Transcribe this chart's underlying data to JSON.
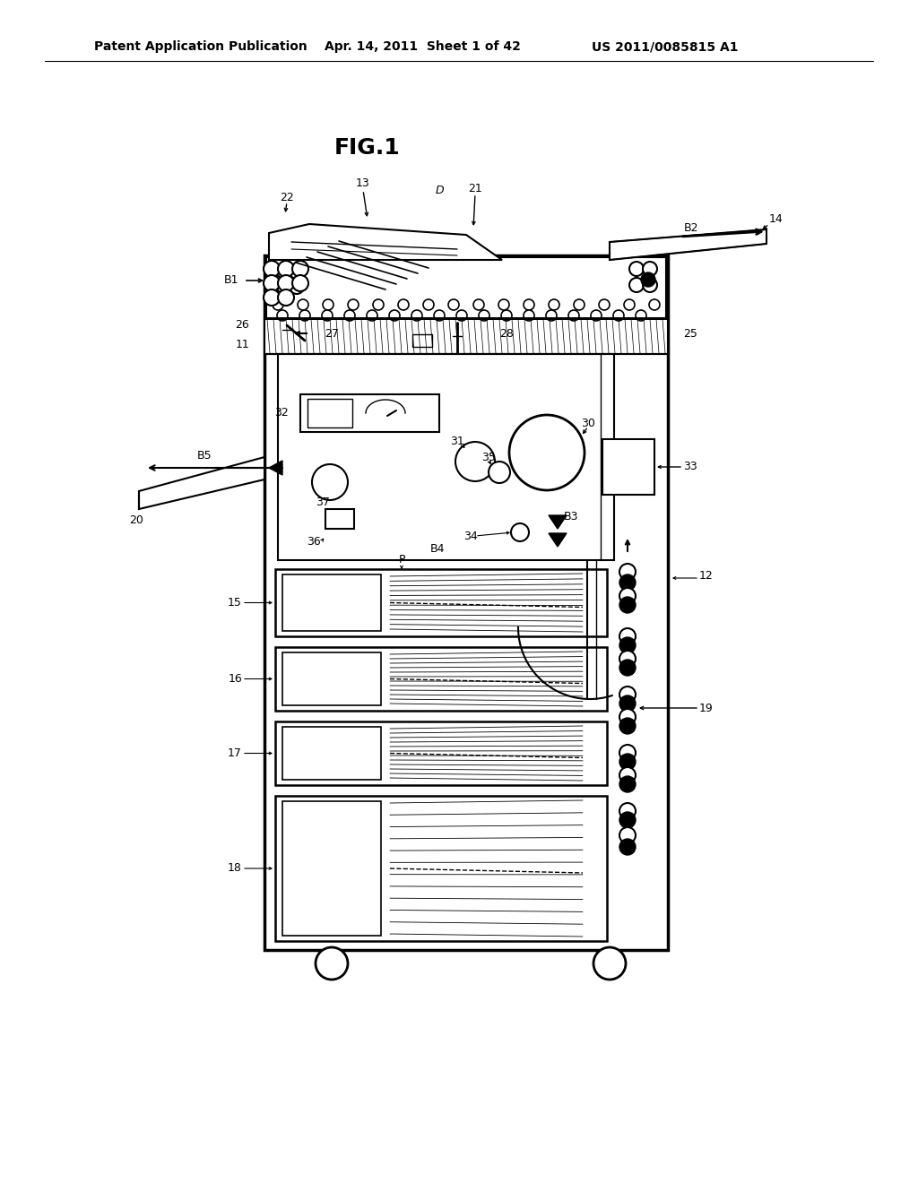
{
  "header_left": "Patent Application Publication",
  "header_mid": "Apr. 14, 2011  Sheet 1 of 42",
  "header_right": "US 2011/0085815 A1",
  "figure_title": "FIG.1",
  "bg_color": "#ffffff",
  "line_color": "#000000",
  "header_fontsize": 10,
  "title_fontsize": 18
}
